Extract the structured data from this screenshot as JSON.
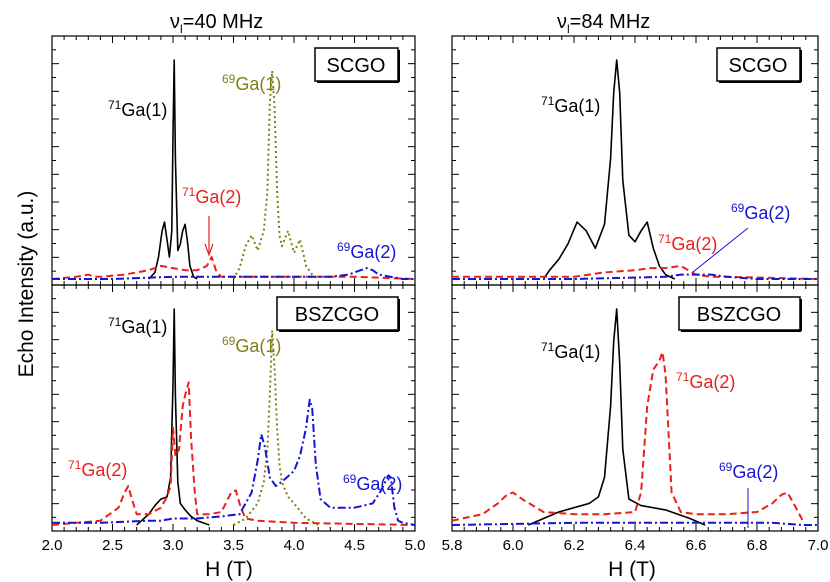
{
  "figure": {
    "ylabel": "Echo Intensity (a.u.)",
    "xlabel": "H (T)",
    "left_title_prefix": "ν",
    "left_title_sub": "l",
    "left_title_rest": "=40 MHz",
    "right_title_prefix": "ν",
    "right_title_sub": "l",
    "right_title_rest": "=84 MHz"
  },
  "colors": {
    "ga71_1": "#000000",
    "ga71_2": "#e8211a",
    "ga69_1": "#7f7f14",
    "ga69_2": "#1414d2"
  },
  "chart_data": [
    {
      "id": "top-left",
      "type": "line",
      "title": "ν_l=40 MHz",
      "sample": "SCGO",
      "xlim": [
        2.0,
        5.0
      ],
      "ylim": [
        0,
        1
      ],
      "x_ticks": [],
      "series": [
        {
          "name": "71Ga(1)",
          "color_key": "ga71_1",
          "dash": "solid",
          "x": [
            2.8,
            2.85,
            2.88,
            2.91,
            2.93,
            2.95,
            2.97,
            2.99,
            3.0,
            3.01,
            3.02,
            3.04,
            3.06,
            3.08,
            3.1,
            3.12,
            3.14,
            3.17,
            3.2
          ],
          "y": [
            0.0,
            0.03,
            0.1,
            0.22,
            0.26,
            0.18,
            0.1,
            0.22,
            0.66,
            1.0,
            0.55,
            0.13,
            0.16,
            0.22,
            0.25,
            0.17,
            0.06,
            0.01,
            0.0
          ]
        },
        {
          "name": "71Ga(2)",
          "color_key": "ga71_2",
          "dash": "dashed",
          "x": [
            2.0,
            2.2,
            2.3,
            2.35,
            2.4,
            2.6,
            2.8,
            2.9,
            3.0,
            3.1,
            3.2,
            3.28,
            3.32,
            3.36,
            3.4,
            3.6,
            4.0,
            4.5,
            5.0
          ],
          "y": [
            0.0,
            0.01,
            0.02,
            0.01,
            0.01,
            0.02,
            0.04,
            0.06,
            0.05,
            0.04,
            0.04,
            0.06,
            0.1,
            0.03,
            0.01,
            0.01,
            0.01,
            0.01,
            0.0
          ]
        },
        {
          "name": "69Ga(1)",
          "color_key": "ga69_1",
          "dash": "dotted",
          "x": [
            3.5,
            3.55,
            3.6,
            3.65,
            3.7,
            3.75,
            3.78,
            3.8,
            3.82,
            3.84,
            3.86,
            3.88,
            3.9,
            3.95,
            4.0,
            4.05,
            4.1,
            4.15,
            4.2
          ],
          "y": [
            0.0,
            0.05,
            0.15,
            0.2,
            0.13,
            0.22,
            0.4,
            0.8,
            0.95,
            0.78,
            0.4,
            0.2,
            0.15,
            0.22,
            0.12,
            0.18,
            0.06,
            0.02,
            0.0
          ]
        },
        {
          "name": "69Ga(2)",
          "color_key": "ga69_2",
          "dash": "dashdot",
          "x": [
            2.0,
            2.5,
            3.0,
            3.5,
            4.0,
            4.3,
            4.45,
            4.55,
            4.6,
            4.65,
            4.7,
            4.8,
            4.9,
            5.0
          ],
          "y": [
            0.0,
            0.0,
            0.01,
            0.01,
            0.01,
            0.01,
            0.02,
            0.04,
            0.05,
            0.04,
            0.02,
            0.01,
            0.0,
            0.0
          ]
        }
      ],
      "annotations": [
        "71Ga(1)",
        "71Ga(2)",
        "69Ga(1)",
        "69Ga(2)"
      ]
    },
    {
      "id": "top-right",
      "type": "line",
      "title": "ν_l=84 MHz",
      "sample": "SCGO",
      "xlim": [
        5.8,
        7.0
      ],
      "ylim": [
        0,
        1
      ],
      "x_ticks": [],
      "series": [
        {
          "name": "71Ga(1)",
          "color_key": "ga71_1",
          "dash": "solid",
          "x": [
            6.1,
            6.12,
            6.15,
            6.18,
            6.21,
            6.24,
            6.27,
            6.3,
            6.32,
            6.33,
            6.34,
            6.35,
            6.36,
            6.38,
            6.4,
            6.42,
            6.44,
            6.46,
            6.48,
            6.5,
            6.53
          ],
          "y": [
            0.0,
            0.04,
            0.09,
            0.16,
            0.26,
            0.22,
            0.14,
            0.25,
            0.55,
            0.85,
            1.0,
            0.85,
            0.45,
            0.2,
            0.17,
            0.22,
            0.26,
            0.14,
            0.06,
            0.02,
            0.0
          ]
        },
        {
          "name": "71Ga(2)",
          "color_key": "ga71_2",
          "dash": "dashed",
          "x": [
            5.8,
            6.0,
            6.2,
            6.3,
            6.4,
            6.45,
            6.5,
            6.55,
            6.6,
            6.65,
            6.7,
            7.0
          ],
          "y": [
            0.01,
            0.01,
            0.01,
            0.03,
            0.04,
            0.05,
            0.05,
            0.06,
            0.02,
            0.01,
            0.01,
            0.0
          ]
        },
        {
          "name": "69Ga(2)",
          "color_key": "ga69_2",
          "dash": "dashdot",
          "x": [
            5.8,
            6.2,
            6.5,
            6.55,
            6.6,
            6.65,
            6.7,
            6.8,
            7.0
          ],
          "y": [
            0.0,
            0.0,
            0.01,
            0.02,
            0.02,
            0.02,
            0.01,
            0.0,
            0.0
          ]
        }
      ],
      "annotations": [
        "71Ga(1)",
        "71Ga(2)",
        "69Ga(2)"
      ]
    },
    {
      "id": "bottom-left",
      "type": "line",
      "sample": "BSZCGO",
      "xlim": [
        2.0,
        5.0
      ],
      "ylim": [
        0,
        1
      ],
      "xlabel": "H (T)",
      "x_ticks": [
        "2.0",
        "2.5",
        "3.0",
        "3.5",
        "4.0",
        "4.5",
        "5.0"
      ],
      "series": [
        {
          "name": "71Ga(1)",
          "color_key": "ga71_1",
          "dash": "solid",
          "x": [
            2.7,
            2.8,
            2.85,
            2.9,
            2.95,
            2.98,
            3.0,
            3.01,
            3.02,
            3.04,
            3.06,
            3.1,
            3.15,
            3.2,
            3.3
          ],
          "y": [
            0.0,
            0.05,
            0.09,
            0.12,
            0.13,
            0.22,
            0.65,
            1.0,
            0.6,
            0.2,
            0.1,
            0.07,
            0.04,
            0.02,
            0.0
          ]
        },
        {
          "name": "71Ga(2)",
          "color_key": "ga71_2",
          "dash": "dashed",
          "x": [
            2.0,
            2.4,
            2.55,
            2.6,
            2.63,
            2.66,
            2.7,
            2.8,
            2.9,
            2.95,
            2.98,
            3.0,
            3.02,
            3.05,
            3.08,
            3.1,
            3.13,
            3.15,
            3.18,
            3.2,
            3.3,
            3.4,
            3.48,
            3.52,
            3.56,
            3.6,
            3.7,
            4.0,
            5.0
          ],
          "y": [
            0.0,
            0.02,
            0.08,
            0.15,
            0.18,
            0.12,
            0.05,
            0.05,
            0.08,
            0.13,
            0.18,
            0.45,
            0.32,
            0.35,
            0.55,
            0.6,
            0.66,
            0.4,
            0.15,
            0.05,
            0.05,
            0.06,
            0.15,
            0.16,
            0.08,
            0.03,
            0.02,
            0.01,
            0.0
          ]
        },
        {
          "name": "69Ga(1)",
          "color_key": "ga69_1",
          "dash": "dotted",
          "x": [
            3.5,
            3.6,
            3.7,
            3.75,
            3.78,
            3.8,
            3.82,
            3.84,
            3.86,
            3.88,
            3.9,
            3.95,
            4.0,
            4.1,
            4.2
          ],
          "y": [
            0.0,
            0.03,
            0.1,
            0.2,
            0.35,
            0.6,
            0.9,
            0.72,
            0.45,
            0.28,
            0.2,
            0.13,
            0.1,
            0.03,
            0.0
          ]
        },
        {
          "name": "69Ga(2)",
          "color_key": "ga69_2",
          "dash": "dashdot",
          "x": [
            2.0,
            2.4,
            2.8,
            2.9,
            3.0,
            3.2,
            3.4,
            3.55,
            3.65,
            3.7,
            3.73,
            3.76,
            3.8,
            3.85,
            3.9,
            4.0,
            4.05,
            4.1,
            4.13,
            4.15,
            4.18,
            4.22,
            4.3,
            4.5,
            4.65,
            4.72,
            4.78,
            4.8,
            4.83,
            4.86,
            4.9,
            5.0
          ],
          "y": [
            0.01,
            0.01,
            0.02,
            0.02,
            0.03,
            0.03,
            0.04,
            0.05,
            0.15,
            0.3,
            0.42,
            0.36,
            0.22,
            0.18,
            0.2,
            0.25,
            0.32,
            0.45,
            0.58,
            0.54,
            0.28,
            0.12,
            0.08,
            0.08,
            0.1,
            0.16,
            0.23,
            0.22,
            0.08,
            0.02,
            0.01,
            0.0
          ]
        }
      ],
      "annotations": [
        "71Ga(1)",
        "71Ga(2)",
        "69Ga(1)",
        "69Ga(2)"
      ]
    },
    {
      "id": "bottom-right",
      "type": "line",
      "sample": "BSZCGO",
      "xlim": [
        5.8,
        7.0
      ],
      "ylim": [
        0,
        1
      ],
      "xlabel": "H (T)",
      "x_ticks": [
        "5.8",
        "6.0",
        "6.2",
        "6.4",
        "6.6",
        "6.8",
        "7.0"
      ],
      "series": [
        {
          "name": "71Ga(1)",
          "color_key": "ga71_1",
          "dash": "solid",
          "x": [
            6.05,
            6.1,
            6.15,
            6.2,
            6.25,
            6.28,
            6.3,
            6.32,
            6.33,
            6.34,
            6.35,
            6.36,
            6.38,
            6.42,
            6.5,
            6.58,
            6.63
          ],
          "y": [
            0.0,
            0.03,
            0.06,
            0.08,
            0.1,
            0.13,
            0.22,
            0.55,
            0.85,
            1.0,
            0.75,
            0.35,
            0.12,
            0.09,
            0.07,
            0.03,
            0.0
          ]
        },
        {
          "name": "71Ga(2)",
          "color_key": "ga71_2",
          "dash": "dashed",
          "x": [
            5.8,
            5.9,
            5.95,
            5.98,
            6.0,
            6.03,
            6.1,
            6.2,
            6.3,
            6.4,
            6.42,
            6.44,
            6.46,
            6.48,
            6.49,
            6.5,
            6.52,
            6.55,
            6.6,
            6.7,
            6.8,
            6.85,
            6.88,
            6.9,
            6.92,
            6.95
          ],
          "y": [
            0.02,
            0.05,
            0.1,
            0.14,
            0.15,
            0.12,
            0.06,
            0.05,
            0.05,
            0.06,
            0.15,
            0.55,
            0.72,
            0.76,
            0.8,
            0.7,
            0.15,
            0.06,
            0.05,
            0.05,
            0.06,
            0.1,
            0.14,
            0.15,
            0.1,
            0.02
          ]
        },
        {
          "name": "69Ga(2)",
          "color_key": "ga69_2",
          "dash": "dashdot",
          "x": [
            5.8,
            6.2,
            6.5,
            6.6,
            6.7,
            6.77,
            6.85,
            6.95,
            7.0
          ],
          "y": [
            0.0,
            0.01,
            0.01,
            0.01,
            0.01,
            0.01,
            0.01,
            0.0,
            0.0
          ]
        }
      ],
      "annotations": [
        "71Ga(1)",
        "71Ga(2)",
        "69Ga(2)"
      ]
    }
  ],
  "labels": {
    "tl_71ga1_mass": "71",
    "tl_71ga1": "Ga(1)",
    "tl_71ga2_mass": "71",
    "tl_71ga2": "Ga(2)",
    "tl_69ga1_mass": "69",
    "tl_69ga1": "Ga(1)",
    "tl_69ga2_mass": "69",
    "tl_69ga2": "Ga(2)",
    "tr_71ga1_mass": "71",
    "tr_71ga1": "Ga(1)",
    "tr_71ga2_mass": "71",
    "tr_71ga2": "Ga(2)",
    "tr_69ga2_mass": "69",
    "tr_69ga2": "Ga(2)",
    "bl_71ga1_mass": "71",
    "bl_71ga1": "Ga(1)",
    "bl_71ga2_mass": "71",
    "bl_71ga2": "Ga(2)",
    "bl_69ga1_mass": "69",
    "bl_69ga1": "Ga(1)",
    "bl_69ga2_mass": "69",
    "bl_69ga2": "Ga(2)",
    "br_71ga1_mass": "71",
    "br_71ga1": "Ga(1)",
    "br_71ga2_mass": "71",
    "br_71ga2": "Ga(2)",
    "br_69ga2_mass": "69",
    "br_69ga2": "Ga(2)"
  }
}
